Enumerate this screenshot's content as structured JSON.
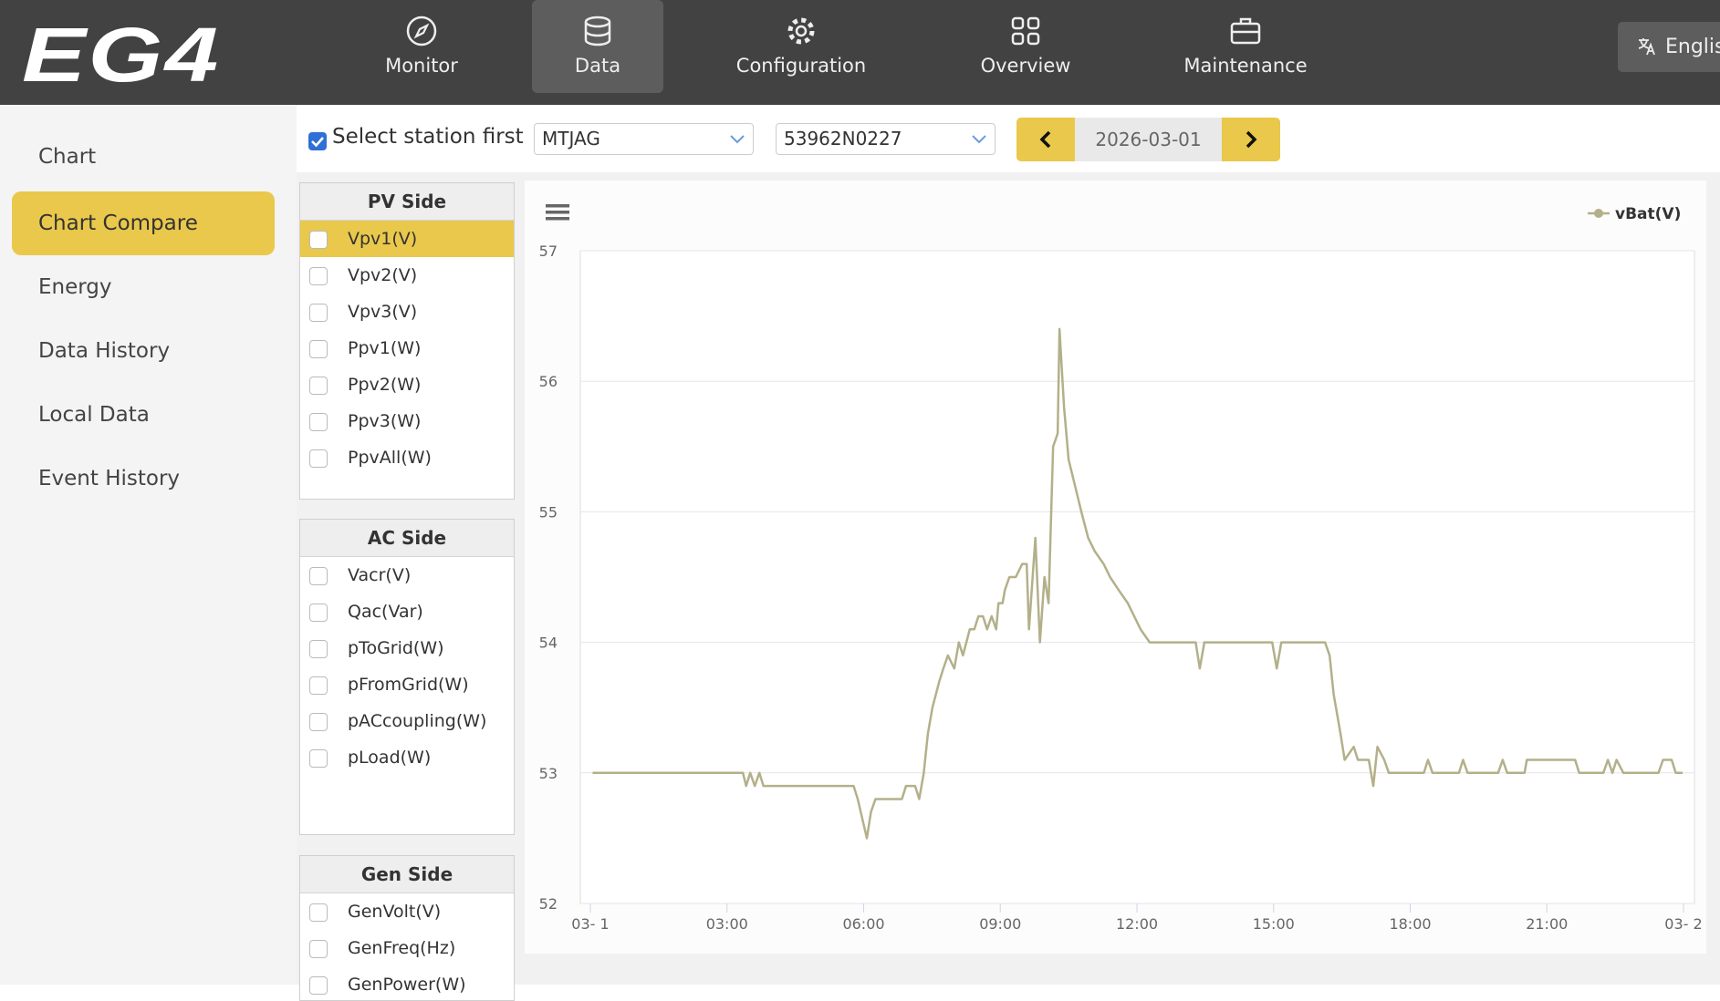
{
  "header": {
    "logo": "EG4",
    "nav": [
      "Monitor",
      "Data",
      "Configuration",
      "Overview",
      "Maintenance"
    ],
    "language": "English"
  },
  "sidebar": {
    "items": [
      "Chart",
      "Chart Compare",
      "Energy",
      "Data History",
      "Local Data",
      "Event History"
    ]
  },
  "toolbar": {
    "select_station_label": "Select station first",
    "station": "MTJAG",
    "serial": "53962N0227",
    "date": "2026-03-01"
  },
  "panels": [
    {
      "title": "PV Side",
      "items": [
        "Vpv1(V)",
        "Vpv2(V)",
        "Vpv3(V)",
        "Ppv1(W)",
        "Ppv2(W)",
        "Ppv3(W)",
        "PpvAll(W)"
      ]
    },
    {
      "title": "AC Side",
      "items": [
        "Vacr(V)",
        "Qac(Var)",
        "pToGrid(W)",
        "pFromGrid(W)",
        "pACcoupling(W)",
        "pLoad(W)"
      ]
    },
    {
      "title": "Gen Side",
      "items": [
        "GenVolt(V)",
        "GenFreq(Hz)",
        "GenPower(W)"
      ]
    }
  ],
  "chart_data": {
    "type": "line",
    "x": [
      0.05,
      3.35,
      3.42,
      3.51,
      3.61,
      3.71,
      3.8,
      3.9,
      5.78,
      5.87,
      6.07,
      6.16,
      6.26,
      6.84,
      6.93,
      7.13,
      7.22,
      7.32,
      7.41,
      7.51,
      7.66,
      7.75,
      7.85,
      7.99,
      8.09,
      8.18,
      8.33,
      8.43,
      8.52,
      8.62,
      8.71,
      8.81,
      8.91,
      8.96,
      9.05,
      9.1,
      9.2,
      9.34,
      9.48,
      9.58,
      9.63,
      9.73,
      9.77,
      9.87,
      9.97,
      10.06,
      10.16,
      10.26,
      10.3,
      10.4,
      10.5,
      10.64,
      10.78,
      10.93,
      11.07,
      11.27,
      11.41,
      11.6,
      11.8,
      11.94,
      12.08,
      12.28,
      13.29,
      13.38,
      13.48,
      14.97,
      15.07,
      15.17,
      16.13,
      16.23,
      16.32,
      16.47,
      16.56,
      16.76,
      16.85,
      17.09,
      17.19,
      17.28,
      17.43,
      17.53,
      18.3,
      18.39,
      18.49,
      19.07,
      19.16,
      19.26,
      19.93,
      20.03,
      20.13,
      20.51,
      20.56,
      21.62,
      21.71,
      22.24,
      22.34,
      22.44,
      22.53,
      22.68,
      23.45,
      23.55,
      23.74,
      23.83,
      23.98
    ],
    "series": [
      {
        "name": "vBat(V)",
        "color": "#b3b08a",
        "values": [
          53.0,
          53.0,
          52.9,
          53.0,
          52.9,
          53.0,
          52.9,
          52.9,
          52.9,
          52.8,
          52.5,
          52.7,
          52.8,
          52.8,
          52.9,
          52.9,
          52.8,
          53.0,
          53.3,
          53.5,
          53.7,
          53.8,
          53.9,
          53.8,
          54.0,
          53.9,
          54.1,
          54.1,
          54.2,
          54.2,
          54.1,
          54.2,
          54.1,
          54.3,
          54.3,
          54.4,
          54.5,
          54.5,
          54.6,
          54.6,
          54.1,
          54.6,
          54.8,
          54.0,
          54.5,
          54.3,
          55.5,
          55.6,
          56.4,
          55.8,
          55.4,
          55.2,
          55.0,
          54.8,
          54.7,
          54.6,
          54.5,
          54.4,
          54.3,
          54.2,
          54.1,
          54.0,
          54.0,
          53.8,
          54.0,
          54.0,
          53.8,
          54.0,
          54.0,
          53.9,
          53.6,
          53.3,
          53.1,
          53.2,
          53.1,
          53.1,
          52.9,
          53.2,
          53.1,
          53.0,
          53.0,
          53.1,
          53.0,
          53.0,
          53.1,
          53.0,
          53.0,
          53.1,
          53.0,
          53.0,
          53.1,
          53.1,
          53.0,
          53.0,
          53.1,
          53.0,
          53.1,
          53.0,
          53.0,
          53.1,
          53.1,
          53.0,
          53.0
        ]
      }
    ],
    "xlim": [
      0,
      24
    ],
    "xticks": [
      {
        "value": 0,
        "label": "03- 1"
      },
      {
        "value": 3,
        "label": "03:00"
      },
      {
        "value": 6,
        "label": "06:00"
      },
      {
        "value": 9,
        "label": "09:00"
      },
      {
        "value": 12,
        "label": "12:00"
      },
      {
        "value": 15,
        "label": "15:00"
      },
      {
        "value": 18,
        "label": "18:00"
      },
      {
        "value": 21,
        "label": "21:00"
      },
      {
        "value": 24,
        "label": "03- 2"
      }
    ],
    "ylim": [
      52,
      57
    ],
    "yticks": [
      52,
      53,
      54,
      55,
      56,
      57
    ],
    "grid": true,
    "legend": "top-right"
  }
}
